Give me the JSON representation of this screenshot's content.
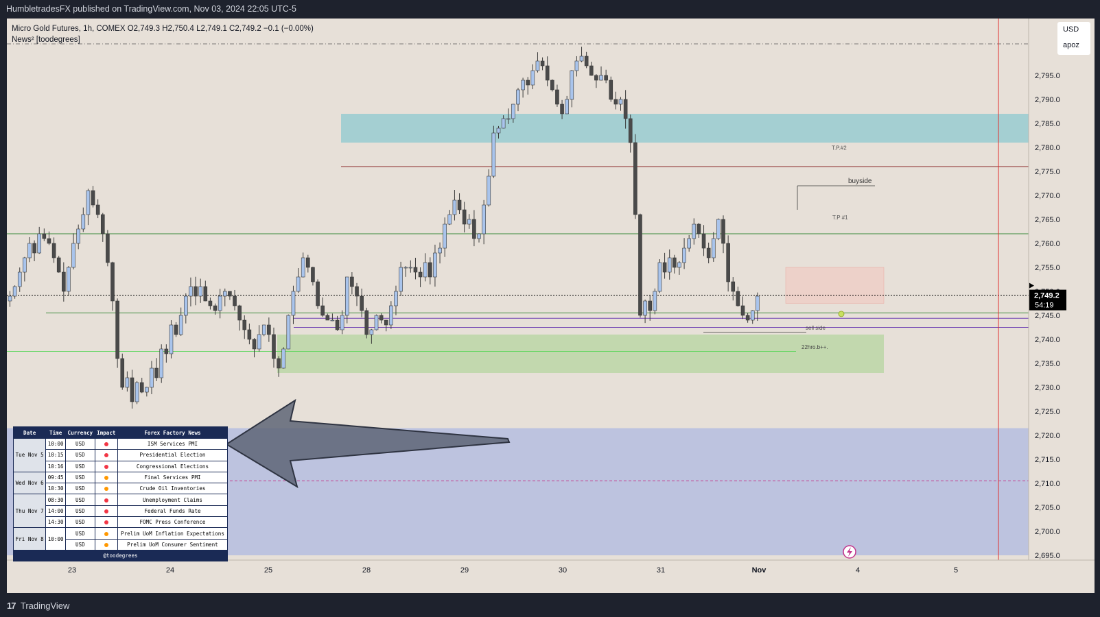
{
  "header": {
    "publisher_line": "HumbletradesFX published on TradingView.com, Nov 03, 2024 22:05 UTC-5"
  },
  "footer": {
    "logo_text": "TradingView",
    "logo_mark": "17"
  },
  "symbol_info": {
    "line": "Micro Gold Futures, 1h, COMEX  O2,749.3  H2,750.4  L2,749.1  C2,749.2  −0.1 (−0.00%)",
    "indicator": "News² [toodegrees]"
  },
  "price_axis": {
    "currency": "USD",
    "unit": "apoz",
    "ticks": [
      "2,795.0",
      "2,790.0",
      "2,785.0",
      "2,780.0",
      "2,775.0",
      "2,770.0",
      "2,765.0",
      "2,760.0",
      "2,755.0",
      "2,750.0",
      "2,745.0",
      "2,740.0",
      "2,735.0",
      "2,730.0",
      "2,725.0",
      "2,720.0",
      "2,715.0",
      "2,710.0",
      "2,705.0",
      "2,700.0",
      "2,695.0"
    ],
    "current_price": "2,749.2",
    "countdown": "54:19"
  },
  "time_axis": {
    "labels": [
      "23",
      "24",
      "25",
      "28",
      "29",
      "30",
      "31",
      "Nov",
      "4",
      "5"
    ]
  },
  "annotations": {
    "tp2": "T.P.#2",
    "tp1": "T.P #1",
    "buyside": "buyside",
    "sellside": "sell side",
    "note": "22hro.b++."
  },
  "news_table": {
    "headers": [
      "Date",
      "Time",
      "Currency",
      "Impact",
      "Forex Factory News"
    ],
    "groups": [
      {
        "date": "Tue Nov 5",
        "rows": [
          {
            "time": "10:00",
            "currency": "USD",
            "impact": "high",
            "event": "ISM Services PMI"
          },
          {
            "time": "10:15",
            "currency": "USD",
            "impact": "high",
            "event": "Presidential Election"
          },
          {
            "time": "10:16",
            "currency": "USD",
            "impact": "high",
            "event": "Congressional Elections"
          }
        ]
      },
      {
        "date": "Wed Nov 6",
        "rows": [
          {
            "time": "09:45",
            "currency": "USD",
            "impact": "medium",
            "event": "Final Services PMI"
          },
          {
            "time": "10:30",
            "currency": "USD",
            "impact": "medium",
            "event": "Crude Oil Inventories"
          }
        ]
      },
      {
        "date": "Thu Nov 7",
        "rows": [
          {
            "time": "08:30",
            "currency": "USD",
            "impact": "high",
            "event": "Unemployment Claims"
          },
          {
            "time": "14:00",
            "currency": "USD",
            "impact": "high",
            "event": "Federal Funds Rate"
          },
          {
            "time": "14:30",
            "currency": "USD",
            "impact": "high",
            "event": "FOMC Press Conference"
          }
        ]
      },
      {
        "date": "Fri Nov 8",
        "time": "10:00",
        "rows": [
          {
            "currency": "USD",
            "impact": "medium",
            "event": "Prelim UoM Inflation Expectations"
          },
          {
            "currency": "USD",
            "impact": "medium",
            "event": "Prelim UoM Consumer Sentiment"
          }
        ]
      }
    ],
    "footer": "@toodegrees",
    "impact_colors": {
      "high": "#f23645",
      "medium": "#ff9800"
    }
  },
  "colors": {
    "background": "#e7e0d8",
    "bull_candle": "#a9c4ec",
    "bear_candle": "#4a4a4a",
    "supply_zone": "#8ec9d0",
    "demand_zone": "#b5d6a0",
    "news_zone": "#b8c0e0",
    "current_price_line": "#000000"
  },
  "chart_data": {
    "type": "candlestick",
    "symbol": "Micro Gold Futures",
    "timeframe": "1h",
    "ylim": [
      2692,
      2800
    ],
    "x_labels": [
      "23",
      "24",
      "25",
      "28",
      "29",
      "30",
      "31",
      "Nov",
      "4",
      "5"
    ],
    "levels": [
      {
        "label": "T.P.#2",
        "price": 2776,
        "color": "#8b2a2a"
      },
      {
        "label": "T.P #1",
        "price": 2762,
        "color": "#3a8a3a"
      },
      {
        "label": "",
        "price": 2745.5,
        "color": "#3a8a3a"
      },
      {
        "label": "",
        "price": 2742.5,
        "color": "#6a3ab0"
      },
      {
        "label": "",
        "price": 2737.5,
        "color": "#5cd65c"
      },
      {
        "label": "",
        "price": 2710.5,
        "color": "#c23a8a"
      },
      {
        "label": "",
        "price": 2749.2,
        "color": "#000000"
      }
    ],
    "zones": [
      {
        "name": "supply",
        "top": 2787,
        "bottom": 2781
      },
      {
        "name": "demand",
        "top": 2741,
        "bottom": 2733
      },
      {
        "name": "news",
        "top": 2721.5,
        "bottom": 2695
      }
    ],
    "closes": [
      2749,
      2751,
      2754,
      2757,
      2760,
      2758,
      2762,
      2761,
      2760,
      2757,
      2754,
      2750,
      2755,
      2760,
      2763,
      2766,
      2771,
      2768,
      2766,
      2762,
      2756,
      2748,
      2736,
      2730,
      2732,
      2727,
      2731,
      2729,
      2730,
      2734,
      2732,
      2738,
      2737,
      2743,
      2741,
      2745,
      2749,
      2751,
      2749,
      2751,
      2748,
      2747,
      2746,
      2749,
      2750,
      2749,
      2747,
      2744,
      2742,
      2740,
      2738,
      2741,
      2743,
      2741,
      2736,
      2734,
      2738,
      2745,
      2750,
      2753,
      2757,
      2755,
      2752,
      2747,
      2745,
      2744,
      2744,
      2742,
      2745,
      2753,
      2751,
      2749,
      2746,
      2741,
      2742,
      2745,
      2744,
      2743,
      2747,
      2750,
      2755,
      2755,
      2755,
      2754,
      2753,
      2756,
      2753,
      2758,
      2759,
      2764,
      2766,
      2769,
      2767,
      2764,
      2765,
      2761,
      2762,
      2768,
      2774,
      2783,
      2784,
      2786,
      2786,
      2789,
      2792,
      2794,
      2793,
      2796,
      2798,
      2797,
      2794,
      2792,
      2789,
      2787,
      2790,
      2796,
      2798,
      2799,
      2797,
      2795,
      2794,
      2795,
      2794,
      2790,
      2789,
      2790,
      2786,
      2781,
      2766,
      2745,
      2748,
      2746,
      2750,
      2756,
      2754,
      2757,
      2755,
      2756,
      2759,
      2761,
      2764,
      2762,
      2759,
      2757,
      2761,
      2765,
      2760,
      2752,
      2750,
      2747,
      2745,
      2744,
      2746,
      2749
    ]
  }
}
